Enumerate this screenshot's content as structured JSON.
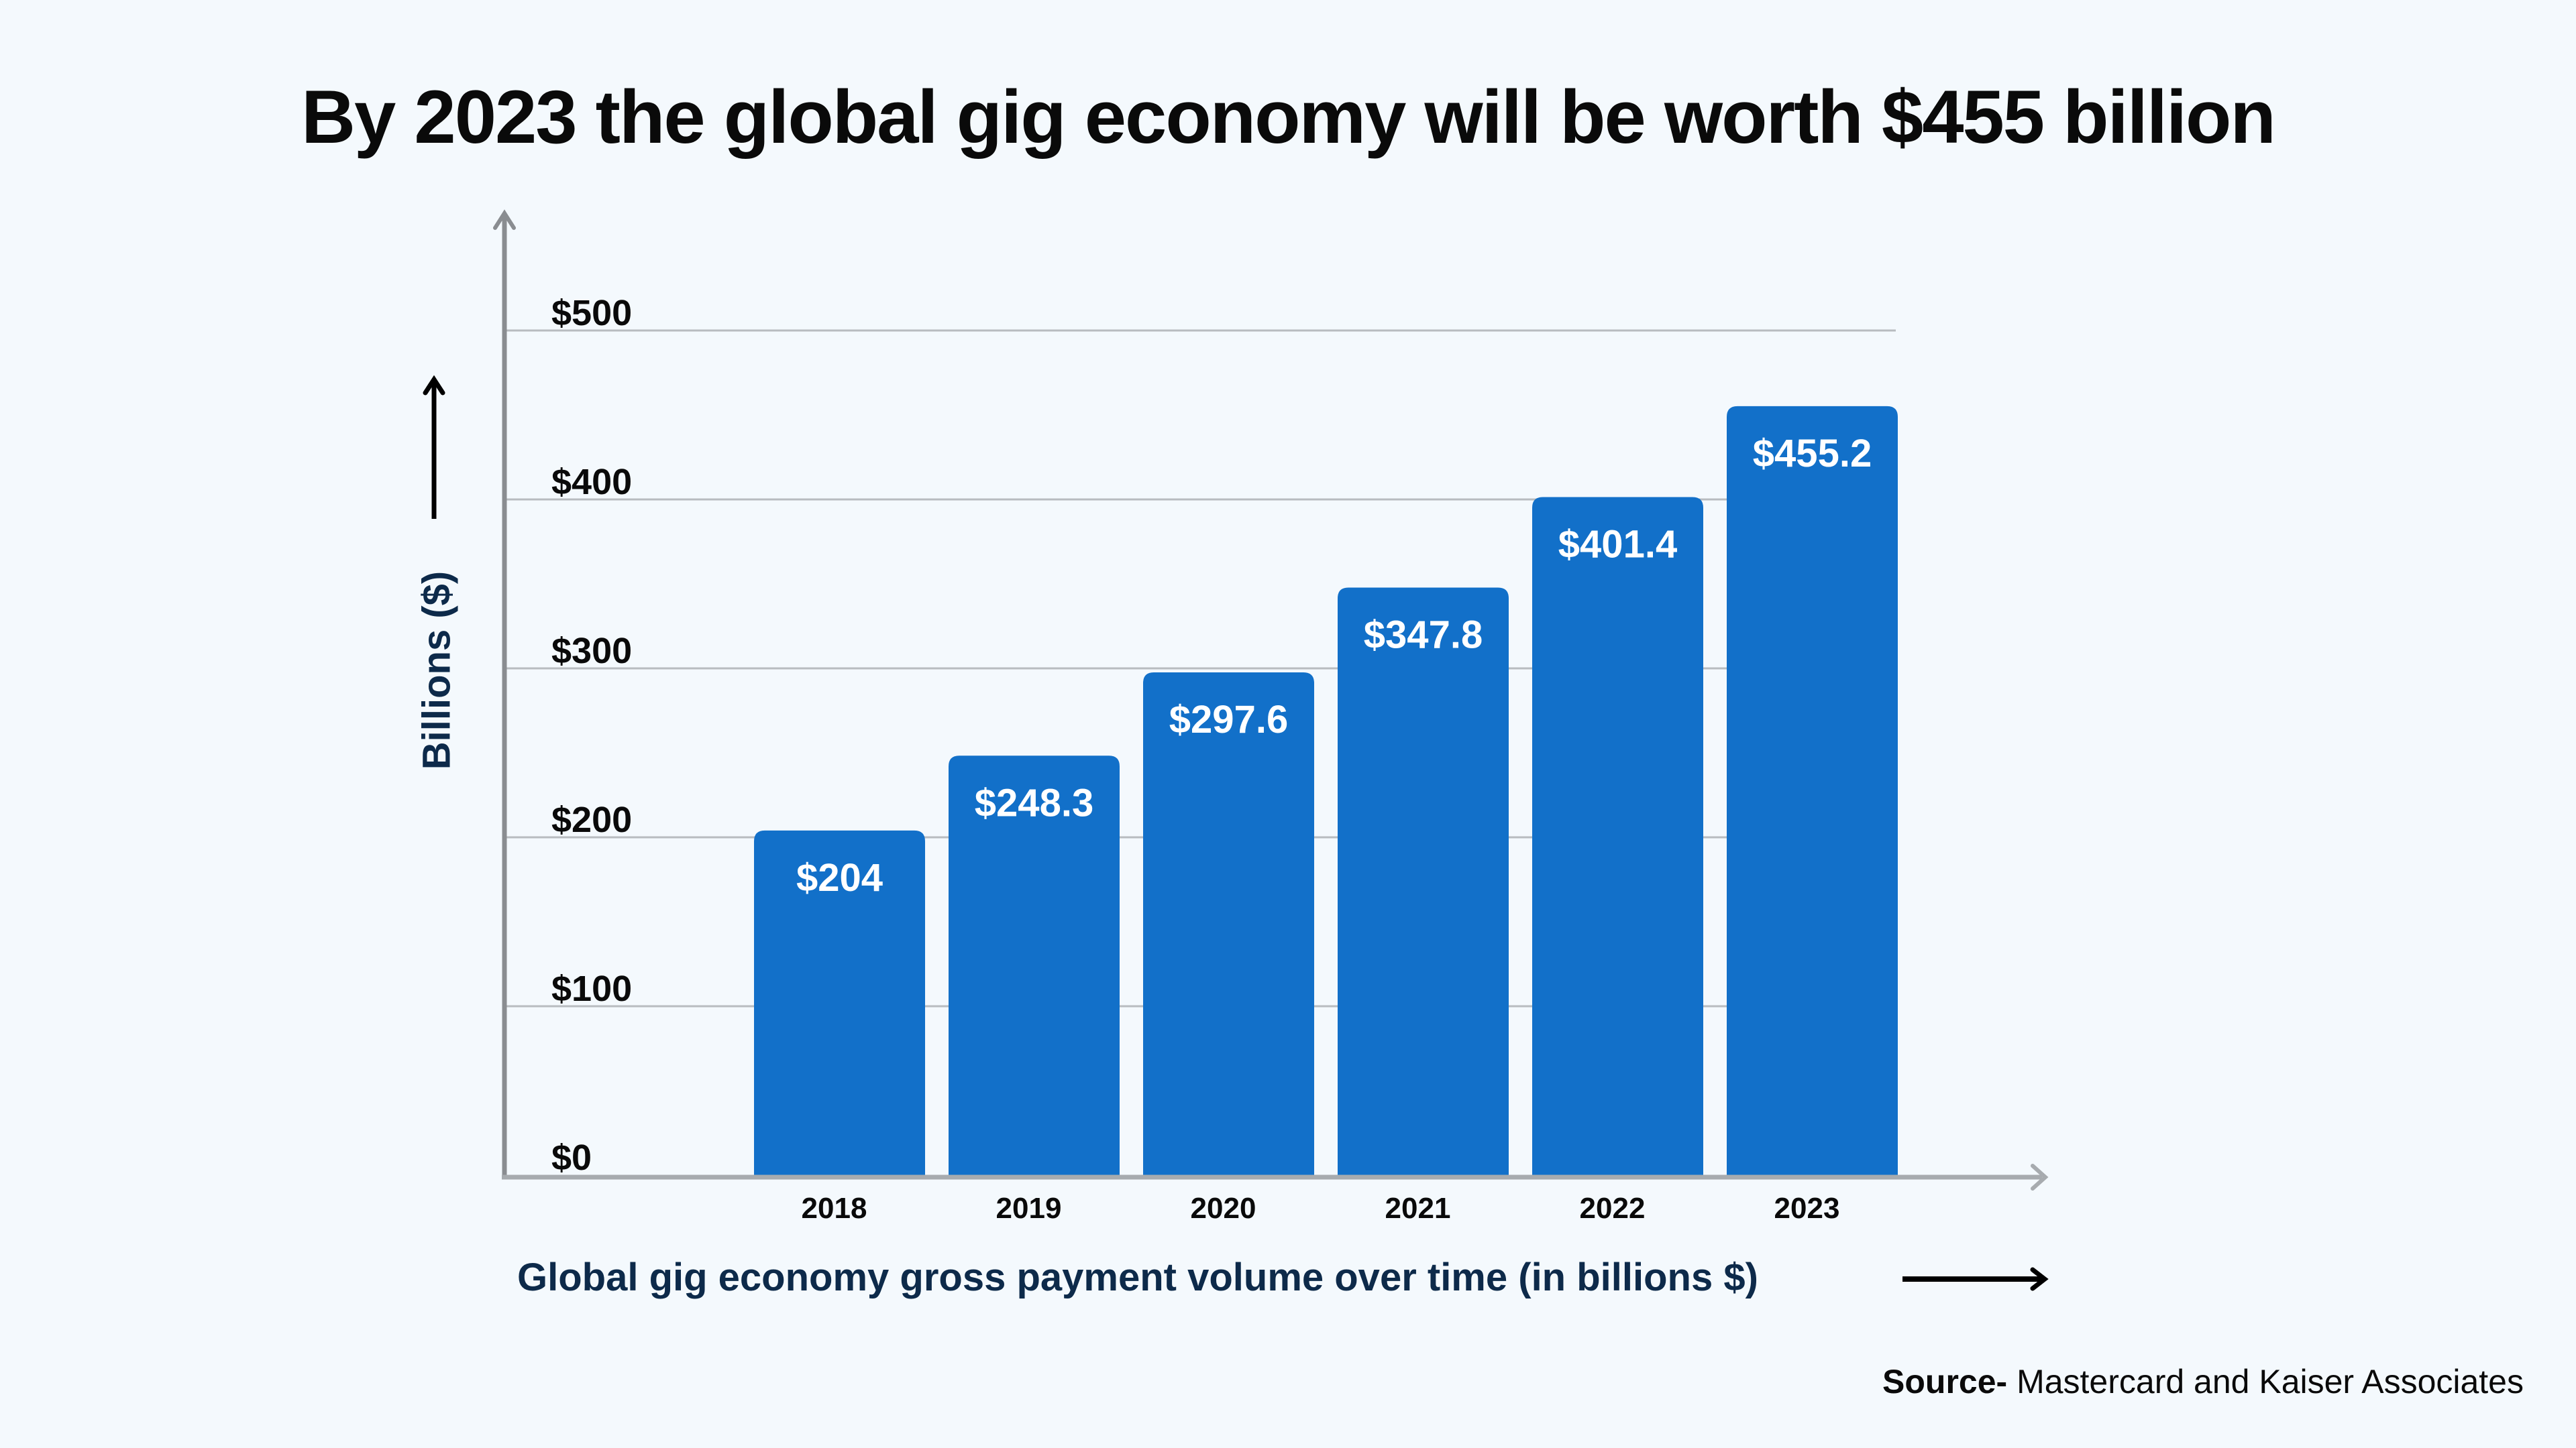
{
  "title": "By 2023 the global gig economy will be worth $455 billion",
  "chart_data": {
    "type": "bar",
    "title": "By 2023 the global gig economy will be worth $455 billion",
    "categories": [
      "2018",
      "2019",
      "2020",
      "2021",
      "2022",
      "2023"
    ],
    "values": [
      204,
      248.3,
      297.6,
      347.8,
      401.4,
      455.2
    ],
    "data_labels": [
      "$204",
      "$248.3",
      "$297.6",
      "$347.8",
      "$401.4",
      "$455.2"
    ],
    "xlabel": "Global gig economy gross payment volume over time (in billions $)",
    "ylabel": "Billions ($)",
    "ylim": [
      0,
      500
    ],
    "yticks": [
      0,
      100,
      200,
      300,
      400,
      500
    ],
    "ytick_labels": [
      "$0",
      "$100",
      "$200",
      "$300",
      "$400",
      "$500"
    ],
    "grid": true,
    "bar_color": "#1270c9",
    "axis_color": "#8a8d91",
    "background": "#f4f9fd"
  },
  "source": {
    "label": "Source-",
    "text": " Mastercard and Kaiser Associates"
  }
}
